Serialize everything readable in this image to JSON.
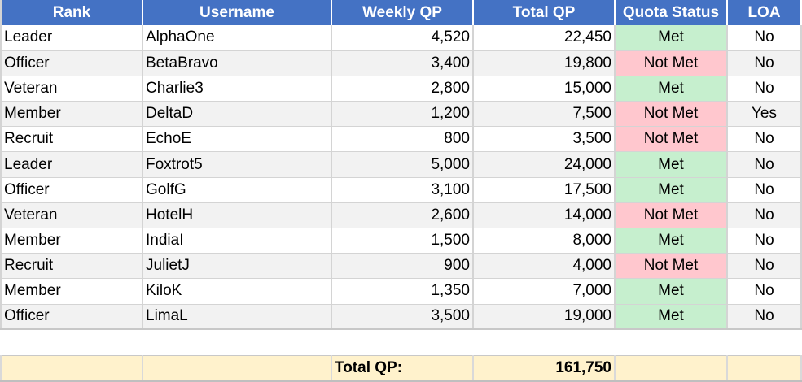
{
  "columns": [
    "Rank",
    "Username",
    "Weekly QP",
    "Total QP",
    "Quota Status",
    "LOA"
  ],
  "rows": [
    {
      "rank": "Leader",
      "username": "AlphaOne",
      "weekly": "4,520",
      "total": "22,450",
      "status": "Met",
      "loa": "No"
    },
    {
      "rank": "Officer",
      "username": "BetaBravo",
      "weekly": "3,400",
      "total": "19,800",
      "status": "Not Met",
      "loa": "No"
    },
    {
      "rank": "Veteran",
      "username": "Charlie3",
      "weekly": "2,800",
      "total": "15,000",
      "status": "Met",
      "loa": "No"
    },
    {
      "rank": "Member",
      "username": "DeltaD",
      "weekly": "1,200",
      "total": "7,500",
      "status": "Not Met",
      "loa": "Yes"
    },
    {
      "rank": "Recruit",
      "username": "EchoE",
      "weekly": "800",
      "total": "3,500",
      "status": "Not Met",
      "loa": "No"
    },
    {
      "rank": "Leader",
      "username": "Foxtrot5",
      "weekly": "5,000",
      "total": "24,000",
      "status": "Met",
      "loa": "No"
    },
    {
      "rank": "Officer",
      "username": "GolfG",
      "weekly": "3,100",
      "total": "17,500",
      "status": "Met",
      "loa": "No"
    },
    {
      "rank": "Veteran",
      "username": "HotelH",
      "weekly": "2,600",
      "total": "14,000",
      "status": "Not Met",
      "loa": "No"
    },
    {
      "rank": "Member",
      "username": "IndiaI",
      "weekly": "1,500",
      "total": "8,000",
      "status": "Met",
      "loa": "No"
    },
    {
      "rank": "Recruit",
      "username": "JulietJ",
      "weekly": "900",
      "total": "4,000",
      "status": "Not Met",
      "loa": "No"
    },
    {
      "rank": "Member",
      "username": "KiloK",
      "weekly": "1,350",
      "total": "7,000",
      "status": "Met",
      "loa": "No"
    },
    {
      "rank": "Officer",
      "username": "LimaL",
      "weekly": "3,500",
      "total": "19,000",
      "status": "Met",
      "loa": "No"
    }
  ],
  "summary": {
    "label": "Total QP:",
    "value": "161,750"
  },
  "colors": {
    "header": "#4472c4",
    "met": "#c6efce",
    "not_met": "#ffc7ce",
    "total_row": "#fff2cc"
  }
}
